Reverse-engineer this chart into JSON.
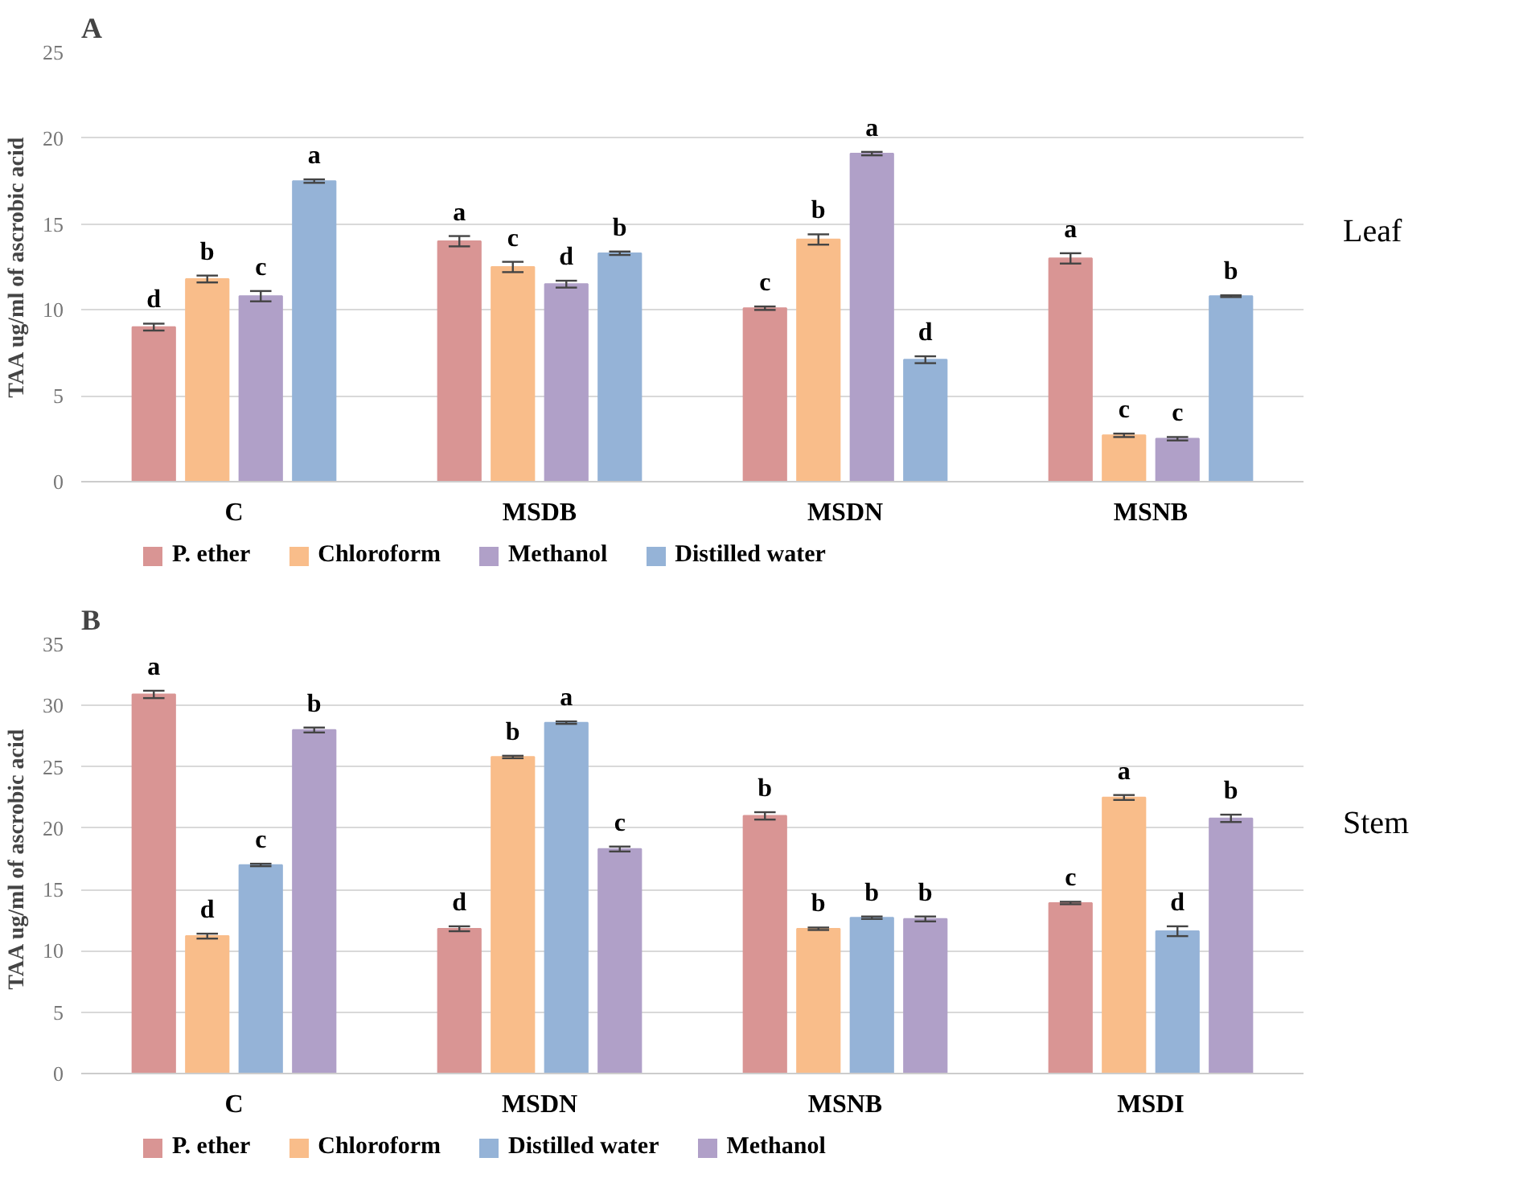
{
  "chart_data": [
    {
      "type": "bar",
      "title": "A",
      "ylabel": "TAA ug/ml of ascrobic acid",
      "categories": [
        "C",
        "MSDB",
        "MSDN",
        "MSNB"
      ],
      "ylim": [
        0,
        25
      ],
      "yticks": [
        0,
        5,
        10,
        15,
        20,
        25
      ],
      "grid": "y",
      "legend": "bottom",
      "annotations": [
        "Leaf"
      ],
      "series": [
        {
          "name": "P. ether",
          "color": "#d99594",
          "values": [
            9.0,
            14.0,
            10.1,
            13.0
          ],
          "errors": [
            0.2,
            0.3,
            0.1,
            0.3
          ],
          "value_labels": [
            "d",
            "a",
            "c",
            "a"
          ]
        },
        {
          "name": "Chloroform",
          "color": "#f9bd8a",
          "values": [
            11.8,
            12.5,
            14.1,
            2.7
          ],
          "errors": [
            0.2,
            0.3,
            0.3,
            0.1
          ],
          "value_labels": [
            "b",
            "c",
            "b",
            "c"
          ]
        },
        {
          "name": "Methanol",
          "color": "#b0a0c8",
          "values": [
            10.8,
            11.5,
            19.1,
            2.5
          ],
          "errors": [
            0.3,
            0.2,
            0.1,
            0.1
          ],
          "value_labels": [
            "c",
            "d",
            "a",
            "c"
          ]
        },
        {
          "name": "Distilled water",
          "color": "#95b3d7",
          "values": [
            17.5,
            13.3,
            7.1,
            10.8
          ],
          "errors": [
            0.1,
            0.1,
            0.2,
            0.05
          ],
          "value_labels": [
            "a",
            "b",
            "d",
            "b"
          ]
        }
      ]
    },
    {
      "type": "bar",
      "title": "B",
      "ylabel": "TAA ug/ml of ascrobic acid",
      "categories": [
        "C",
        "MSDN",
        "MSNB",
        "MSDI"
      ],
      "ylim": [
        0,
        35
      ],
      "yticks": [
        0,
        5,
        10,
        15,
        20,
        25,
        30,
        35
      ],
      "grid": "y",
      "legend": "bottom",
      "annotations": [
        "Stem"
      ],
      "series": [
        {
          "name": "P. ether",
          "color": "#d99594",
          "values": [
            30.9,
            11.8,
            21.0,
            13.9
          ],
          "errors": [
            0.3,
            0.2,
            0.3,
            0.1
          ],
          "value_labels": [
            "a",
            "d",
            "b",
            "c"
          ]
        },
        {
          "name": "Chloroform",
          "color": "#f9bd8a",
          "values": [
            11.2,
            25.8,
            11.8,
            22.5
          ],
          "errors": [
            0.2,
            0.1,
            0.1,
            0.2
          ],
          "value_labels": [
            "d",
            "b",
            "b",
            "a"
          ]
        },
        {
          "name": "Distilled water",
          "color": "#95b3d7",
          "values": [
            17.0,
            28.6,
            12.7,
            11.6
          ],
          "errors": [
            0.1,
            0.1,
            0.1,
            0.4
          ],
          "value_labels": [
            "c",
            "a",
            "b",
            "d"
          ]
        },
        {
          "name": "Methanol",
          "color": "#b0a0c8",
          "values": [
            28.0,
            18.3,
            12.6,
            20.8
          ],
          "errors": [
            0.2,
            0.2,
            0.2,
            0.3
          ],
          "value_labels": [
            "b",
            "c",
            "b",
            "b"
          ]
        }
      ]
    }
  ]
}
